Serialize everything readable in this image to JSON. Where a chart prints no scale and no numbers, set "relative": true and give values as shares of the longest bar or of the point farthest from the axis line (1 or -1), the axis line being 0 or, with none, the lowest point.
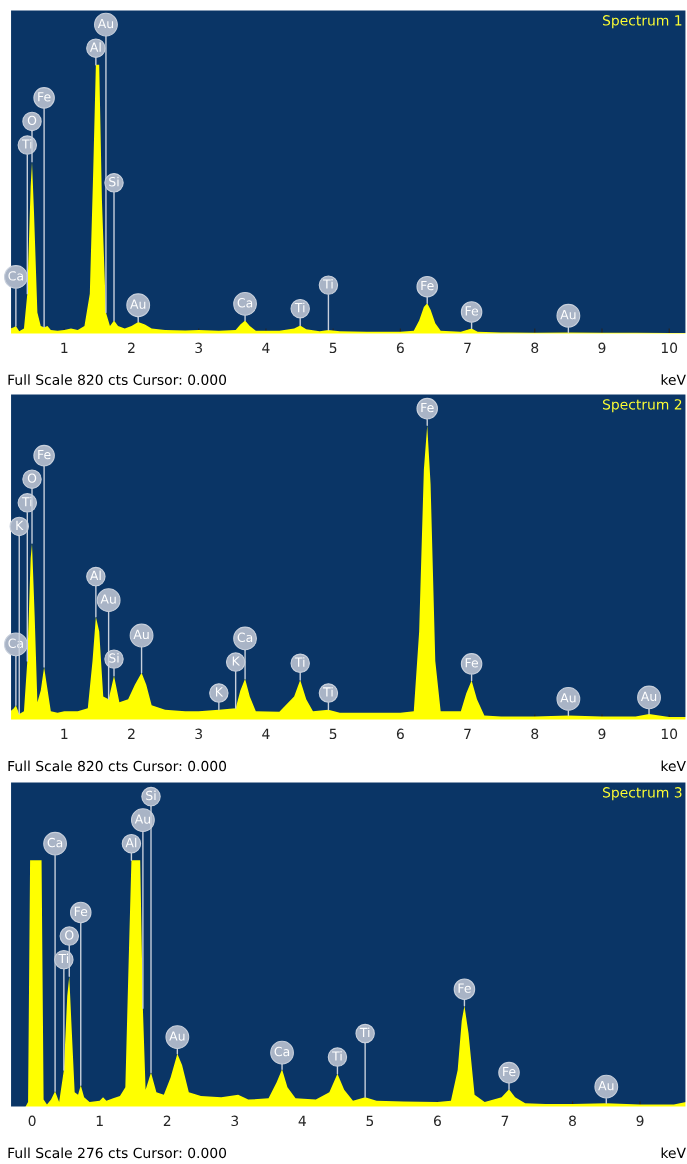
{
  "chart_data": [
    {
      "type": "area",
      "title": "Spectrum 1",
      "xlabel": "keV",
      "relative": true,
      "tick_labels": "x",
      "xlim": [
        0.2,
        10.25
      ],
      "xticks": [
        1,
        2,
        3,
        4,
        5,
        6,
        7,
        8,
        9,
        10
      ],
      "x": [
        0.2,
        0.25,
        0.28,
        0.33,
        0.4,
        0.45,
        0.5,
        0.52,
        0.55,
        0.6,
        0.65,
        0.7,
        0.75,
        0.8,
        0.9,
        1.0,
        1.1,
        1.2,
        1.3,
        1.38,
        1.43,
        1.47,
        1.52,
        1.56,
        1.62,
        1.68,
        1.74,
        1.8,
        1.9,
        2.0,
        2.1,
        2.2,
        2.3,
        2.5,
        2.8,
        3.0,
        3.3,
        3.55,
        3.62,
        3.69,
        3.76,
        3.85,
        4.2,
        4.42,
        4.51,
        4.6,
        4.8,
        4.93,
        5.1,
        5.5,
        6.0,
        6.2,
        6.28,
        6.35,
        6.4,
        6.45,
        6.52,
        6.6,
        6.9,
        7.06,
        7.15,
        7.5,
        8.0,
        8.5,
        9.0,
        9.5,
        10.0,
        10.25
      ],
      "series": [
        {
          "color": "#ffff00",
          "values": [
            0.02,
            0.025,
            0.03,
            0.01,
            0.02,
            0.15,
            0.55,
            0.64,
            0.45,
            0.08,
            0.03,
            0.025,
            0.03,
            0.015,
            0.012,
            0.015,
            0.02,
            0.015,
            0.03,
            0.15,
            0.6,
            1.0,
            1.0,
            0.5,
            0.08,
            0.03,
            0.05,
            0.03,
            0.02,
            0.03,
            0.045,
            0.035,
            0.02,
            0.015,
            0.013,
            0.015,
            0.012,
            0.015,
            0.035,
            0.05,
            0.03,
            0.012,
            0.012,
            0.02,
            0.032,
            0.018,
            0.01,
            0.015,
            0.01,
            0.008,
            0.008,
            0.012,
            0.05,
            0.1,
            0.114,
            0.09,
            0.04,
            0.012,
            0.008,
            0.02,
            0.008,
            0.006,
            0.005,
            0.006,
            0.005,
            0.005,
            0.004,
            0.004
          ]
        }
      ],
      "annotations": [
        {
          "text": "Ca",
          "x": 0.28,
          "y": 0.03
        },
        {
          "text": "Ti",
          "x": 0.45,
          "y": 0.15
        },
        {
          "text": "O",
          "x": 0.52,
          "y": 0.64
        },
        {
          "text": "Fe",
          "x": 0.7,
          "y": 0.025
        },
        {
          "text": "Al",
          "x": 1.47,
          "y": 1.0
        },
        {
          "text": "Au",
          "x": 1.62,
          "y": 0.08
        },
        {
          "text": "Si",
          "x": 1.74,
          "y": 0.05
        },
        {
          "text": "Au",
          "x": 2.1,
          "y": 0.045
        },
        {
          "text": "Ca",
          "x": 3.69,
          "y": 0.05
        },
        {
          "text": "Ti",
          "x": 4.51,
          "y": 0.032
        },
        {
          "text": "Ti",
          "x": 4.93,
          "y": 0.015
        },
        {
          "text": "Fe",
          "x": 6.4,
          "y": 0.114
        },
        {
          "text": "Fe",
          "x": 7.06,
          "y": 0.02
        },
        {
          "text": "Au",
          "x": 8.5,
          "y": 0.006
        },
        "Full Scale 820 cts Cursor: 0.000"
      ]
    },
    {
      "type": "area",
      "title": "Spectrum 2",
      "xlabel": "keV",
      "relative": true,
      "tick_labels": "x",
      "xlim": [
        0.2,
        10.25
      ],
      "xticks": [
        1,
        2,
        3,
        4,
        5,
        6,
        7,
        8,
        9,
        10
      ],
      "x": [
        0.2,
        0.25,
        0.28,
        0.33,
        0.4,
        0.45,
        0.5,
        0.52,
        0.56,
        0.6,
        0.65,
        0.7,
        0.74,
        0.8,
        0.9,
        1.0,
        1.2,
        1.35,
        1.42,
        1.47,
        1.52,
        1.58,
        1.66,
        1.74,
        1.82,
        1.95,
        2.05,
        2.15,
        2.22,
        2.3,
        2.5,
        2.8,
        3.0,
        3.3,
        3.55,
        3.62,
        3.69,
        3.76,
        3.85,
        4.2,
        4.42,
        4.51,
        4.6,
        4.7,
        4.93,
        5.1,
        5.5,
        6.0,
        6.2,
        6.28,
        6.35,
        6.4,
        6.45,
        6.52,
        6.6,
        6.9,
        6.98,
        7.06,
        7.14,
        7.25,
        7.5,
        8.0,
        8.5,
        9.0,
        9.5,
        9.7,
        10.0,
        10.25
      ],
      "series": [
        {
          "color": "#ffff00",
          "values": [
            0.03,
            0.04,
            0.05,
            0.02,
            0.03,
            0.2,
            0.55,
            0.6,
            0.35,
            0.06,
            0.1,
            0.18,
            0.12,
            0.03,
            0.025,
            0.03,
            0.03,
            0.04,
            0.2,
            0.35,
            0.3,
            0.08,
            0.07,
            0.15,
            0.06,
            0.07,
            0.12,
            0.16,
            0.12,
            0.05,
            0.035,
            0.03,
            0.03,
            0.035,
            0.04,
            0.1,
            0.14,
            0.08,
            0.03,
            0.028,
            0.08,
            0.136,
            0.07,
            0.03,
            0.035,
            0.025,
            0.025,
            0.025,
            0.03,
            0.3,
            0.85,
            1.0,
            0.8,
            0.2,
            0.03,
            0.03,
            0.09,
            0.134,
            0.07,
            0.015,
            0.012,
            0.012,
            0.015,
            0.012,
            0.012,
            0.02,
            0.01,
            0.01
          ]
        }
      ],
      "annotations": [
        {
          "text": "Ca",
          "x": 0.28,
          "y": 0.05
        },
        {
          "text": "K",
          "x": 0.33,
          "y": 0.02
        },
        {
          "text": "Ti",
          "x": 0.45,
          "y": 0.2
        },
        {
          "text": "O",
          "x": 0.52,
          "y": 0.6
        },
        {
          "text": "Fe",
          "x": 0.7,
          "y": 0.18
        },
        {
          "text": "Si",
          "x": 1.74,
          "y": 0.15
        },
        {
          "text": "Au",
          "x": 1.66,
          "y": 0.07
        },
        {
          "text": "Al",
          "x": 1.47,
          "y": 0.35
        },
        {
          "text": "Au",
          "x": 2.15,
          "y": 0.16
        },
        {
          "text": "K",
          "x": 3.55,
          "y": 0.04
        },
        {
          "text": "K",
          "x": 3.3,
          "y": 0.035
        },
        {
          "text": "Ca",
          "x": 3.69,
          "y": 0.14
        },
        {
          "text": "Ti",
          "x": 4.51,
          "y": 0.136
        },
        {
          "text": "Ti",
          "x": 4.93,
          "y": 0.035
        },
        {
          "text": "Fe",
          "x": 6.4,
          "y": 1.0
        },
        {
          "text": "Fe",
          "x": 7.06,
          "y": 0.134
        },
        {
          "text": "Au",
          "x": 8.5,
          "y": 0.015
        },
        {
          "text": "Au",
          "x": 9.7,
          "y": 0.02
        },
        "Full Scale 820 cts Cursor: 0.000"
      ]
    },
    {
      "type": "area",
      "title": "Spectrum 3",
      "xlabel": "keV",
      "relative": true,
      "tick_labels": "x",
      "xlim": [
        -0.32,
        9.68
      ],
      "xticks": [
        0,
        1,
        2,
        3,
        4,
        5,
        6,
        7,
        8,
        9
      ],
      "x": [
        -0.32,
        -0.1,
        -0.06,
        -0.03,
        0.14,
        0.17,
        0.22,
        0.28,
        0.34,
        0.4,
        0.47,
        0.52,
        0.55,
        0.58,
        0.63,
        0.68,
        0.72,
        0.77,
        0.85,
        1.0,
        1.05,
        1.1,
        1.2,
        1.3,
        1.38,
        1.43,
        1.47,
        1.6,
        1.64,
        1.68,
        1.76,
        1.84,
        1.95,
        2.05,
        2.15,
        2.22,
        2.32,
        2.5,
        2.8,
        3.05,
        3.2,
        3.5,
        3.62,
        3.7,
        3.78,
        3.9,
        4.2,
        4.4,
        4.52,
        4.62,
        4.75,
        4.93,
        5.1,
        5.5,
        6.0,
        6.2,
        6.3,
        6.36,
        6.4,
        6.46,
        6.55,
        6.7,
        6.95,
        7.06,
        7.15,
        7.3,
        7.6,
        8.0,
        8.5,
        9.0,
        9.5,
        9.68
      ],
      "series": [
        {
          "color": "#ffff00",
          "values": [
            0.0,
            0.0,
            0.02,
            1.0,
            1.0,
            0.03,
            0.01,
            0.03,
            0.064,
            0.02,
            0.15,
            0.45,
            0.53,
            0.35,
            0.06,
            0.05,
            0.088,
            0.04,
            0.02,
            0.025,
            0.04,
            0.025,
            0.035,
            0.045,
            0.08,
            0.6,
            1.0,
            1.0,
            0.4,
            0.07,
            0.14,
            0.06,
            0.05,
            0.12,
            0.216,
            0.17,
            0.06,
            0.045,
            0.04,
            0.05,
            0.03,
            0.035,
            0.1,
            0.153,
            0.08,
            0.035,
            0.03,
            0.06,
            0.135,
            0.07,
            0.025,
            0.04,
            0.025,
            0.022,
            0.02,
            0.025,
            0.15,
            0.35,
            0.41,
            0.3,
            0.05,
            0.02,
            0.04,
            0.072,
            0.04,
            0.015,
            0.012,
            0.012,
            0.015,
            0.01,
            0.01,
            0.02
          ]
        }
      ],
      "annotations": [
        {
          "text": "Ca",
          "x": 0.34,
          "y": 0.064
        },
        {
          "text": "Ti",
          "x": 0.47,
          "y": 0.15
        },
        {
          "text": "O",
          "x": 0.55,
          "y": 0.53
        },
        {
          "text": "Fe",
          "x": 0.72,
          "y": 0.088
        },
        {
          "text": "Al",
          "x": 1.47,
          "y": 1.0
        },
        {
          "text": "Au",
          "x": 1.64,
          "y": 0.4
        },
        {
          "text": "Si",
          "x": 1.76,
          "y": 0.14
        },
        {
          "text": "Au",
          "x": 2.15,
          "y": 0.216
        },
        {
          "text": "Ca",
          "x": 3.7,
          "y": 0.153
        },
        {
          "text": "Ti",
          "x": 4.52,
          "y": 0.135
        },
        {
          "text": "Ti",
          "x": 4.93,
          "y": 0.04
        },
        {
          "text": "Fe",
          "x": 6.4,
          "y": 0.41
        },
        {
          "text": "Fe",
          "x": 7.06,
          "y": 0.072
        },
        {
          "text": "Au",
          "x": 8.5,
          "y": 0.015
        },
        "Full Scale 276 cts Cursor: 0.000"
      ]
    }
  ]
}
